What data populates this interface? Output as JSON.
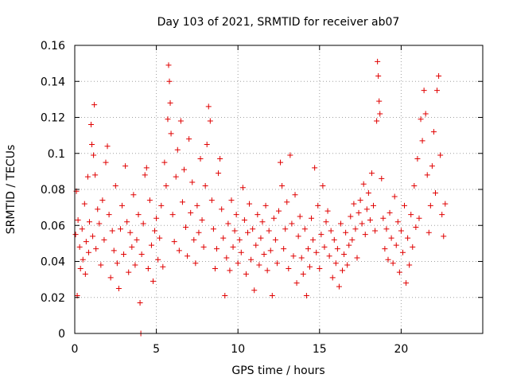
{
  "chart_data": {
    "type": "scatter",
    "title": "Day 103 of 2021, SRMTID for receiver ab07",
    "xlabel": "GPS time / hours",
    "ylabel": "SRMTID / TECUs",
    "xlim": [
      0,
      25
    ],
    "ylim": [
      0,
      0.16
    ],
    "xticks": [
      0,
      5,
      10,
      15,
      20
    ],
    "xtick_labels": [
      "0",
      "5",
      "10",
      "15",
      "20"
    ],
    "yticks": [
      0,
      0.02,
      0.04,
      0.06,
      0.08,
      0.1,
      0.12,
      0.14,
      0.16
    ],
    "ytick_labels": [
      "0",
      "0.02",
      "0.04",
      "0.06",
      "0.08",
      "0.1",
      "0.12",
      "0.14",
      "0.16"
    ],
    "grid": true,
    "marker": "+",
    "color": "#e00000",
    "series": [
      {
        "name": "SRMTID",
        "points": [
          [
            0.05,
            0.055
          ],
          [
            0.1,
            0.079
          ],
          [
            0.15,
            0.021
          ],
          [
            0.2,
            0.063
          ],
          [
            0.3,
            0.048
          ],
          [
            0.35,
            0.036
          ],
          [
            0.45,
            0.058
          ],
          [
            0.5,
            0.041
          ],
          [
            0.6,
            0.072
          ],
          [
            0.65,
            0.033
          ],
          [
            0.7,
            0.051
          ],
          [
            0.8,
            0.087
          ],
          [
            0.85,
            0.045
          ],
          [
            0.9,
            0.062
          ],
          [
            1.0,
            0.116
          ],
          [
            1.05,
            0.105
          ],
          [
            1.1,
            0.054
          ],
          [
            1.15,
            0.099
          ],
          [
            1.2,
            0.127
          ],
          [
            1.25,
            0.088
          ],
          [
            1.3,
            0.047
          ],
          [
            1.4,
            0.069
          ],
          [
            1.5,
            0.061
          ],
          [
            1.6,
            0.038
          ],
          [
            1.7,
            0.074
          ],
          [
            1.8,
            0.052
          ],
          [
            1.9,
            0.095
          ],
          [
            2.0,
            0.104
          ],
          [
            2.1,
            0.066
          ],
          [
            2.2,
            0.031
          ],
          [
            2.3,
            0.057
          ],
          [
            2.4,
            0.046
          ],
          [
            2.5,
            0.082
          ],
          [
            2.6,
            0.039
          ],
          [
            2.7,
            0.025
          ],
          [
            2.8,
            0.058
          ],
          [
            2.9,
            0.071
          ],
          [
            3.0,
            0.044
          ],
          [
            3.1,
            0.093
          ],
          [
            3.2,
            0.062
          ],
          [
            3.3,
            0.034
          ],
          [
            3.4,
            0.056
          ],
          [
            3.5,
            0.048
          ],
          [
            3.6,
            0.077
          ],
          [
            3.7,
            0.038
          ],
          [
            3.8,
            0.052
          ],
          [
            3.9,
            0.066
          ],
          [
            4.0,
            0.017
          ],
          [
            4.05,
            0.0
          ],
          [
            4.1,
            0.044
          ],
          [
            4.2,
            0.061
          ],
          [
            4.3,
            0.088
          ],
          [
            4.4,
            0.092
          ],
          [
            4.5,
            0.036
          ],
          [
            4.6,
            0.074
          ],
          [
            4.7,
            0.049
          ],
          [
            4.8,
            0.029
          ],
          [
            4.9,
            0.057
          ],
          [
            5.0,
            0.064
          ],
          [
            5.1,
            0.041
          ],
          [
            5.2,
            0.053
          ],
          [
            5.3,
            0.071
          ],
          [
            5.4,
            0.037
          ],
          [
            5.5,
            0.095
          ],
          [
            5.6,
            0.082
          ],
          [
            5.7,
            0.119
          ],
          [
            5.75,
            0.149
          ],
          [
            5.8,
            0.14
          ],
          [
            5.85,
            0.128
          ],
          [
            5.9,
            0.111
          ],
          [
            6.0,
            0.066
          ],
          [
            6.1,
            0.051
          ],
          [
            6.2,
            0.087
          ],
          [
            6.3,
            0.102
          ],
          [
            6.4,
            0.046
          ],
          [
            6.5,
            0.118
          ],
          [
            6.6,
            0.073
          ],
          [
            6.7,
            0.091
          ],
          [
            6.8,
            0.059
          ],
          [
            6.9,
            0.043
          ],
          [
            7.0,
            0.108
          ],
          [
            7.1,
            0.067
          ],
          [
            7.2,
            0.084
          ],
          [
            7.3,
            0.052
          ],
          [
            7.4,
            0.039
          ],
          [
            7.5,
            0.071
          ],
          [
            7.6,
            0.056
          ],
          [
            7.7,
            0.097
          ],
          [
            7.8,
            0.063
          ],
          [
            7.9,
            0.048
          ],
          [
            8.0,
            0.082
          ],
          [
            8.1,
            0.105
          ],
          [
            8.2,
            0.126
          ],
          [
            8.3,
            0.118
          ],
          [
            8.4,
            0.074
          ],
          [
            8.5,
            0.058
          ],
          [
            8.6,
            0.036
          ],
          [
            8.7,
            0.047
          ],
          [
            8.8,
            0.089
          ],
          [
            8.9,
            0.097
          ],
          [
            9.0,
            0.069
          ],
          [
            9.1,
            0.053
          ],
          [
            9.2,
            0.021
          ],
          [
            9.3,
            0.042
          ],
          [
            9.4,
            0.061
          ],
          [
            9.5,
            0.035
          ],
          [
            9.6,
            0.074
          ],
          [
            9.7,
            0.048
          ],
          [
            9.8,
            0.057
          ],
          [
            9.9,
            0.066
          ],
          [
            10.0,
            0.039
          ],
          [
            10.1,
            0.052
          ],
          [
            10.2,
            0.045
          ],
          [
            10.3,
            0.081
          ],
          [
            10.4,
            0.063
          ],
          [
            10.5,
            0.033
          ],
          [
            10.6,
            0.056
          ],
          [
            10.7,
            0.072
          ],
          [
            10.8,
            0.041
          ],
          [
            10.9,
            0.058
          ],
          [
            11.0,
            0.024
          ],
          [
            11.1,
            0.049
          ],
          [
            11.2,
            0.066
          ],
          [
            11.3,
            0.038
          ],
          [
            11.4,
            0.053
          ],
          [
            11.5,
            0.062
          ],
          [
            11.6,
            0.044
          ],
          [
            11.7,
            0.071
          ],
          [
            11.8,
            0.035
          ],
          [
            11.9,
            0.057
          ],
          [
            12.0,
            0.046
          ],
          [
            12.1,
            0.021
          ],
          [
            12.2,
            0.064
          ],
          [
            12.3,
            0.052
          ],
          [
            12.4,
            0.039
          ],
          [
            12.5,
            0.068
          ],
          [
            12.6,
            0.095
          ],
          [
            12.7,
            0.082
          ],
          [
            12.8,
            0.047
          ],
          [
            12.9,
            0.058
          ],
          [
            13.0,
            0.073
          ],
          [
            13.1,
            0.036
          ],
          [
            13.2,
            0.099
          ],
          [
            13.3,
            0.061
          ],
          [
            13.4,
            0.043
          ],
          [
            13.5,
            0.077
          ],
          [
            13.6,
            0.028
          ],
          [
            13.7,
            0.054
          ],
          [
            13.8,
            0.065
          ],
          [
            13.9,
            0.042
          ],
          [
            14.0,
            0.033
          ],
          [
            14.1,
            0.058
          ],
          [
            14.2,
            0.021
          ],
          [
            14.3,
            0.047
          ],
          [
            14.4,
            0.037
          ],
          [
            14.5,
            0.064
          ],
          [
            14.6,
            0.052
          ],
          [
            14.7,
            0.092
          ],
          [
            14.8,
            0.045
          ],
          [
            14.9,
            0.071
          ],
          [
            15.0,
            0.036
          ],
          [
            15.1,
            0.055
          ],
          [
            15.2,
            0.082
          ],
          [
            15.3,
            0.048
          ],
          [
            15.4,
            0.062
          ],
          [
            15.5,
            0.068
          ],
          [
            15.6,
            0.043
          ],
          [
            15.7,
            0.057
          ],
          [
            15.8,
            0.031
          ],
          [
            15.9,
            0.052
          ],
          [
            16.0,
            0.039
          ],
          [
            16.1,
            0.047
          ],
          [
            16.2,
            0.026
          ],
          [
            16.3,
            0.061
          ],
          [
            16.4,
            0.035
          ],
          [
            16.5,
            0.044
          ],
          [
            16.6,
            0.056
          ],
          [
            16.7,
            0.038
          ],
          [
            16.8,
            0.049
          ],
          [
            16.9,
            0.065
          ],
          [
            17.0,
            0.052
          ],
          [
            17.1,
            0.072
          ],
          [
            17.2,
            0.058
          ],
          [
            17.3,
            0.042
          ],
          [
            17.4,
            0.067
          ],
          [
            17.5,
            0.074
          ],
          [
            17.6,
            0.061
          ],
          [
            17.7,
            0.083
          ],
          [
            17.8,
            0.055
          ],
          [
            17.9,
            0.069
          ],
          [
            18.0,
            0.078
          ],
          [
            18.1,
            0.063
          ],
          [
            18.2,
            0.089
          ],
          [
            18.3,
            0.071
          ],
          [
            18.4,
            0.057
          ],
          [
            18.5,
            0.118
          ],
          [
            18.55,
            0.151
          ],
          [
            18.6,
            0.143
          ],
          [
            18.65,
            0.129
          ],
          [
            18.7,
            0.122
          ],
          [
            18.8,
            0.086
          ],
          [
            18.9,
            0.064
          ],
          [
            19.0,
            0.047
          ],
          [
            19.1,
            0.058
          ],
          [
            19.2,
            0.041
          ],
          [
            19.3,
            0.067
          ],
          [
            19.4,
            0.053
          ],
          [
            19.5,
            0.039
          ],
          [
            19.6,
            0.076
          ],
          [
            19.7,
            0.049
          ],
          [
            19.8,
            0.062
          ],
          [
            19.9,
            0.034
          ],
          [
            20.0,
            0.057
          ],
          [
            20.1,
            0.045
          ],
          [
            20.2,
            0.071
          ],
          [
            20.3,
            0.028
          ],
          [
            20.4,
            0.053
          ],
          [
            20.5,
            0.038
          ],
          [
            20.6,
            0.066
          ],
          [
            20.7,
            0.048
          ],
          [
            20.8,
            0.082
          ],
          [
            20.9,
            0.059
          ],
          [
            21.0,
            0.097
          ],
          [
            21.1,
            0.064
          ],
          [
            21.2,
            0.119
          ],
          [
            21.3,
            0.107
          ],
          [
            21.4,
            0.135
          ],
          [
            21.5,
            0.122
          ],
          [
            21.6,
            0.088
          ],
          [
            21.7,
            0.056
          ],
          [
            21.8,
            0.071
          ],
          [
            21.9,
            0.093
          ],
          [
            22.0,
            0.112
          ],
          [
            22.1,
            0.078
          ],
          [
            22.2,
            0.135
          ],
          [
            22.3,
            0.143
          ],
          [
            22.4,
            0.099
          ],
          [
            22.5,
            0.066
          ],
          [
            22.6,
            0.054
          ],
          [
            22.7,
            0.072
          ]
        ]
      }
    ]
  }
}
